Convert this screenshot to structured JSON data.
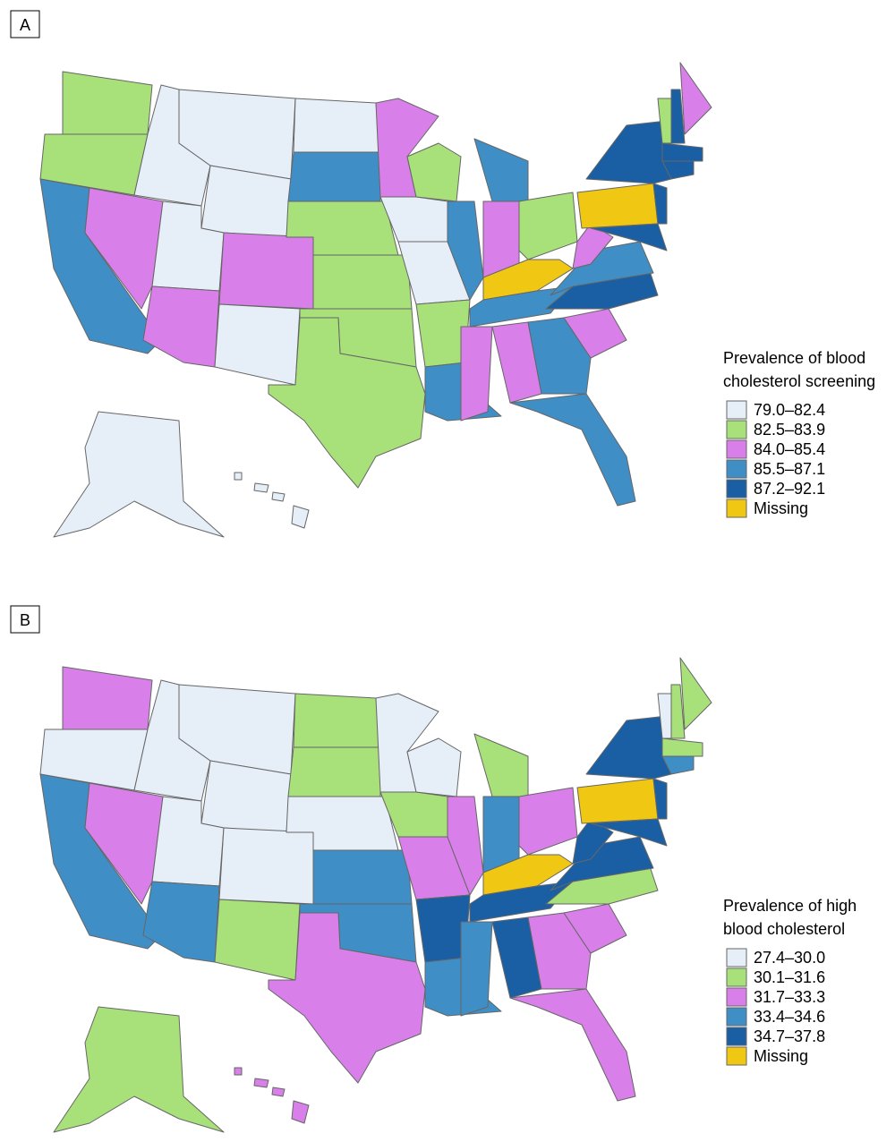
{
  "panels": [
    {
      "label": "A",
      "legend": {
        "title": [
          "Prevalence of blood",
          "cholesterol screening"
        ],
        "items": [
          {
            "label": "79.0–82.4",
            "color": "#e6eef8"
          },
          {
            "label": "82.5–83.9",
            "color": "#a8e07a"
          },
          {
            "label": "84.0–85.4",
            "color": "#d97fea"
          },
          {
            "label": "85.5–87.1",
            "color": "#3f8fc6"
          },
          {
            "label": "87.2–92.1",
            "color": "#1a5fa3"
          },
          {
            "label": "Missing",
            "color": "#f0c814"
          }
        ]
      }
    },
    {
      "label": "B",
      "legend": {
        "title": [
          "Prevalence of high",
          "blood cholesterol"
        ],
        "items": [
          {
            "label": "27.4–30.0",
            "color": "#e6eef8"
          },
          {
            "label": "30.1–31.6",
            "color": "#a8e07a"
          },
          {
            "label": "31.7–33.3",
            "color": "#d97fea"
          },
          {
            "label": "33.4–34.6",
            "color": "#3f8fc6"
          },
          {
            "label": "34.7–37.8",
            "color": "#1a5fa3"
          },
          {
            "label": "Missing",
            "color": "#f0c814"
          }
        ]
      }
    }
  ]
}
